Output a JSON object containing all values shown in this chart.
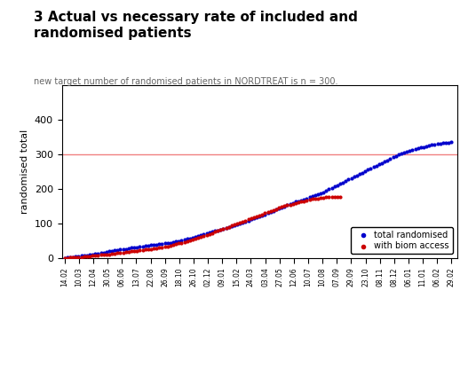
{
  "title": "3 Actual vs necessary rate of included and\nrandomised patients",
  "subtitle": "new target number of randomised patients in NORDTREAT is n = 300.",
  "ylabel": "randomised total",
  "ylim": [
    0,
    500
  ],
  "yticks": [
    0,
    100,
    200,
    300,
    400
  ],
  "hline_y": 300,
  "hline_color": "#f08080",
  "blue_color": "#0000cc",
  "red_color": "#cc0000",
  "legend_labels": [
    "total randomised",
    "with biom access"
  ],
  "xtick_labels": [
    "14.02",
    "10.03",
    "12.04",
    "30.05",
    "06.06",
    "13.07",
    "22.08",
    "26.09",
    "18.10",
    "26.10",
    "02.12",
    "09.01",
    "15.02",
    "24.03",
    "03.04",
    "27.05",
    "12.06",
    "10.07",
    "10.08",
    "07.09",
    "29.09",
    "23.10",
    "08.11",
    "08.12",
    "06.01",
    "11.01",
    "06.02",
    "29.02"
  ],
  "blue_x": [
    1,
    2,
    3,
    4,
    5,
    6,
    7,
    8,
    9,
    10,
    11,
    12,
    13,
    14,
    15,
    16,
    17,
    18,
    19,
    20,
    21,
    22,
    23,
    24,
    25,
    26,
    27,
    28,
    29,
    30,
    31,
    32,
    33,
    34,
    35,
    36,
    37,
    38,
    39,
    40,
    41,
    42,
    43,
    44,
    45,
    46,
    47,
    48,
    49,
    50,
    51,
    52,
    53,
    54,
    55,
    56,
    57,
    58,
    59,
    60,
    61,
    62,
    63,
    64,
    65,
    66,
    67,
    68,
    69,
    70,
    71,
    72,
    73,
    74,
    75,
    76,
    77,
    78,
    79,
    80,
    81,
    82,
    83,
    84,
    85,
    86,
    87,
    88,
    89,
    90,
    91,
    92,
    93,
    94,
    95,
    96,
    97,
    98,
    99,
    100,
    101,
    102,
    103,
    104,
    105,
    106,
    107,
    108,
    109,
    110,
    111,
    112,
    113,
    114,
    115,
    116,
    117,
    118,
    119,
    120,
    121,
    122,
    123,
    124,
    125,
    126,
    127,
    128,
    129,
    130,
    131,
    132,
    133,
    134,
    135,
    136,
    137,
    138,
    139,
    140
  ],
  "blue_y": [
    1,
    2,
    3,
    4,
    5,
    6,
    7,
    8,
    9,
    10,
    11,
    13,
    14,
    15,
    17,
    19,
    20,
    22,
    23,
    24,
    25,
    26,
    27,
    28,
    30,
    31,
    32,
    33,
    34,
    36,
    37,
    38,
    39,
    40,
    41,
    42,
    43,
    44,
    45,
    47,
    48,
    50,
    52,
    54,
    56,
    58,
    60,
    63,
    65,
    68,
    70,
    72,
    75,
    77,
    79,
    81,
    83,
    85,
    87,
    90,
    92,
    95,
    98,
    100,
    103,
    106,
    109,
    112,
    115,
    118,
    121,
    124,
    127,
    130,
    133,
    136,
    140,
    143,
    146,
    150,
    153,
    157,
    160,
    163,
    165,
    167,
    170,
    173,
    176,
    179,
    182,
    185,
    188,
    191,
    195,
    199,
    203,
    207,
    211,
    215,
    219,
    223,
    227,
    231,
    235,
    239,
    243,
    247,
    251,
    255,
    259,
    263,
    267,
    271,
    275,
    279,
    283,
    287,
    291,
    295,
    299,
    302,
    305,
    308,
    311,
    313,
    315,
    317,
    319,
    321,
    323,
    325,
    327,
    329,
    330,
    331,
    332,
    333,
    334,
    335
  ],
  "red_x": [
    1,
    2,
    3,
    4,
    5,
    6,
    7,
    8,
    9,
    10,
    11,
    12,
    13,
    14,
    15,
    16,
    17,
    18,
    19,
    20,
    21,
    22,
    23,
    24,
    25,
    26,
    27,
    28,
    29,
    30,
    31,
    32,
    33,
    34,
    35,
    36,
    37,
    38,
    39,
    40,
    41,
    42,
    43,
    44,
    45,
    46,
    47,
    48,
    49,
    50,
    51,
    52,
    53,
    54,
    55,
    56,
    57,
    58,
    59,
    60,
    61,
    62,
    63,
    64,
    65,
    66,
    67,
    68,
    69,
    70,
    71,
    72,
    73,
    74,
    75,
    76,
    77,
    78,
    79,
    80,
    81,
    82,
    83,
    84,
    85,
    86,
    87,
    88,
    89,
    90,
    91,
    92,
    93,
    94,
    95,
    96,
    97,
    98,
    99,
    100
  ],
  "red_y": [
    1,
    1,
    2,
    2,
    3,
    3,
    4,
    5,
    5,
    6,
    7,
    8,
    9,
    10,
    10,
    11,
    12,
    13,
    14,
    15,
    16,
    17,
    18,
    19,
    20,
    21,
    22,
    23,
    24,
    25,
    26,
    27,
    28,
    29,
    30,
    31,
    33,
    35,
    37,
    39,
    41,
    43,
    45,
    47,
    50,
    52,
    55,
    57,
    60,
    62,
    65,
    67,
    70,
    73,
    76,
    79,
    82,
    85,
    88,
    91,
    94,
    97,
    100,
    103,
    106,
    109,
    112,
    115,
    118,
    121,
    124,
    127,
    130,
    133,
    136,
    139,
    142,
    145,
    148,
    151,
    153,
    155,
    157,
    159,
    161,
    163,
    165,
    167,
    169,
    171,
    172,
    173,
    174,
    175,
    176,
    177,
    177,
    178,
    178,
    178
  ]
}
